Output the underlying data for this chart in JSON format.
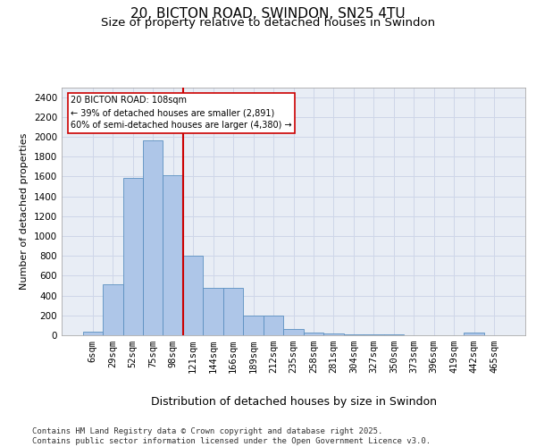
{
  "title1": "20, BICTON ROAD, SWINDON, SN25 4TU",
  "title2": "Size of property relative to detached houses in Swindon",
  "xlabel": "Distribution of detached houses by size in Swindon",
  "ylabel": "Number of detached properties",
  "bar_labels": [
    "6sqm",
    "29sqm",
    "52sqm",
    "75sqm",
    "98sqm",
    "121sqm",
    "144sqm",
    "166sqm",
    "189sqm",
    "212sqm",
    "235sqm",
    "258sqm",
    "281sqm",
    "304sqm",
    "327sqm",
    "350sqm",
    "373sqm",
    "396sqm",
    "419sqm",
    "442sqm",
    "465sqm"
  ],
  "bar_values": [
    35,
    510,
    1590,
    1960,
    1610,
    800,
    475,
    475,
    200,
    195,
    60,
    25,
    15,
    10,
    10,
    5,
    0,
    0,
    0,
    25,
    0
  ],
  "bar_color": "#aec6e8",
  "bar_edge_color": "#5a8fc0",
  "annotation_text": "20 BICTON ROAD: 108sqm\n← 39% of detached houses are smaller (2,891)\n60% of semi-detached houses are larger (4,380) →",
  "vline_color": "#cc0000",
  "annotation_box_color": "#ffffff",
  "annotation_box_edge": "#cc0000",
  "ylim": [
    0,
    2500
  ],
  "yticks": [
    0,
    200,
    400,
    600,
    800,
    1000,
    1200,
    1400,
    1600,
    1800,
    2000,
    2200,
    2400
  ],
  "grid_color": "#ced6e8",
  "background_color": "#e8edf5",
  "footer": "Contains HM Land Registry data © Crown copyright and database right 2025.\nContains public sector information licensed under the Open Government Licence v3.0.",
  "title1_fontsize": 11,
  "title2_fontsize": 9.5,
  "xlabel_fontsize": 9,
  "ylabel_fontsize": 8,
  "tick_fontsize": 7.5,
  "footer_fontsize": 6.5
}
